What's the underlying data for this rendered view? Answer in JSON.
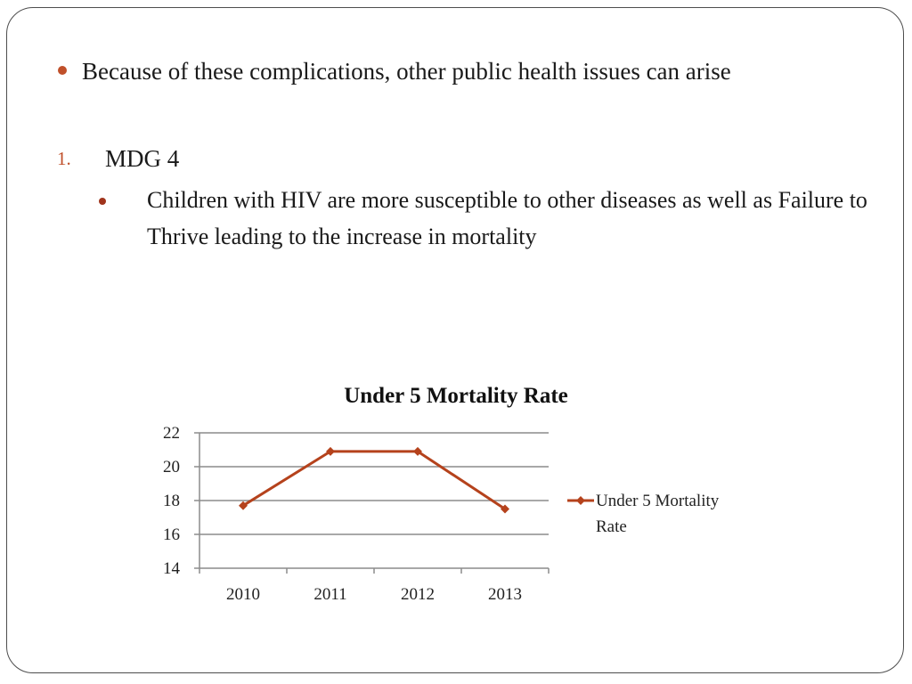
{
  "slide": {
    "bullet1": "Because of these complications, other public health issues can arise",
    "number1": "1.",
    "item1": "MDG 4",
    "sub_bullet": "Children with HIV are more susceptible to other diseases as well as Failure to Thrive leading to the increase in mortality"
  },
  "colors": {
    "accent": "#c0502a",
    "series": "#b5421c",
    "sub_bullet": "#a0341c",
    "frame": "#4d4d4d",
    "grid": "#8c8c8c"
  },
  "chart_data": {
    "type": "line",
    "title": "Under 5 Mortality Rate",
    "categories": [
      "2010",
      "2011",
      "2012",
      "2013"
    ],
    "series": [
      {
        "name": "Under 5 Mortality Rate",
        "values": [
          17.7,
          20.9,
          20.9,
          17.5
        ],
        "marker": "diamond"
      }
    ],
    "ylim": [
      14,
      22
    ],
    "yticks": [
      "14",
      "16",
      "18",
      "20",
      "22"
    ],
    "grid": true,
    "legend": "right",
    "xlabel": "",
    "ylabel": ""
  }
}
